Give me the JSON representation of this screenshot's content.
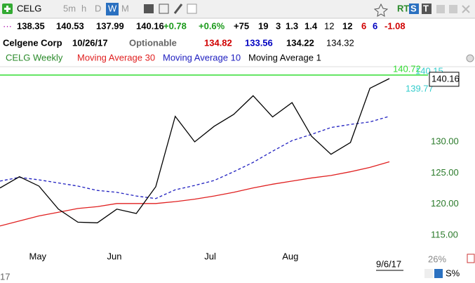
{
  "toolbar": {
    "symbol": "CELG",
    "timeframes": [
      "5m",
      "h",
      "D",
      "W",
      "M"
    ],
    "active": "W",
    "right_tags": [
      "RT",
      "S",
      "T"
    ]
  },
  "quote": {
    "row1": [
      {
        "text": "138.35",
        "color": "#000"
      },
      {
        "text": "140.53",
        "color": "#000"
      },
      {
        "text": "137.99",
        "color": "#000"
      },
      {
        "text": "140.16",
        "color": "#000"
      },
      {
        "text": "+0.78",
        "color": "#1a9a1a"
      },
      {
        "text": "+0.6%",
        "color": "#1a9a1a"
      },
      {
        "text": "+75",
        "color": "#000"
      },
      {
        "text": "19",
        "color": "#000"
      },
      {
        "text": "3",
        "color": "#000"
      },
      {
        "text": "1.3",
        "color": "#000"
      },
      {
        "text": "1.4",
        "color": "#000"
      },
      {
        "text": "12",
        "color": "#000"
      },
      {
        "text": "12",
        "color": "#000"
      },
      {
        "text": "6",
        "color": "#d00000"
      },
      {
        "text": "6",
        "color": "#0000c0"
      },
      {
        "text": "-1.08",
        "color": "#d00000"
      }
    ],
    "row2": [
      {
        "text": "Celgene Corp",
        "color": "#000"
      },
      {
        "text": "10/26/17",
        "color": "#000"
      },
      {
        "text": "Optionable",
        "color": "#666"
      },
      {
        "text": "134.82",
        "color": "#d00000"
      },
      {
        "text": "133.56",
        "color": "#0000c0"
      },
      {
        "text": "134.22",
        "color": "#000"
      },
      {
        "text": "134.32",
        "color": "#000"
      }
    ]
  },
  "chart_data": {
    "type": "line",
    "categories": [
      null,
      null,
      "May",
      null,
      null,
      null,
      "Jun",
      null,
      null,
      null,
      null,
      "Jul",
      null,
      null,
      null,
      "Aug",
      null,
      null,
      null,
      null,
      null
    ],
    "series": [
      {
        "name": "CELG Weekly",
        "color": "#000000",
        "dashed": false,
        "values": [
          122.6,
          124.4,
          122.9,
          119.2,
          117.1,
          117.0,
          119.2,
          118.5,
          122.8,
          134.1,
          130.0,
          132.5,
          134.4,
          137.4,
          134.0,
          136.3,
          130.9,
          128.0,
          129.9,
          138.6,
          140.16
        ]
      },
      {
        "name": "Moving Average 30",
        "color": "#e02020",
        "dashed": false,
        "values": [
          116.5,
          117.3,
          118.1,
          118.7,
          119.3,
          119.6,
          120.1,
          120.1,
          120.1,
          120.4,
          120.8,
          121.3,
          121.9,
          122.6,
          123.2,
          123.7,
          124.2,
          124.6,
          125.2,
          125.9,
          126.8
        ]
      },
      {
        "name": "Moving Average 10",
        "color": "#2020c0",
        "dashed": true,
        "values": [
          123.7,
          124.3,
          123.9,
          123.4,
          122.9,
          122.2,
          121.9,
          121.3,
          120.9,
          122.3,
          123.0,
          123.8,
          125.2,
          126.7,
          128.5,
          130.2,
          131.2,
          132.3,
          132.8,
          133.2,
          134.1
        ]
      }
    ],
    "legend_extra": "Moving Average 1",
    "ylim": [
      112.75,
      141.5
    ],
    "yticks": [
      {
        "value": 115,
        "label": "115.00"
      },
      {
        "value": 120,
        "label": "120.00"
      },
      {
        "value": 125,
        "label": "125.00"
      },
      {
        "value": 130,
        "label": "130.00"
      }
    ],
    "reference_line": {
      "value": 140.72,
      "color": "#33dd33"
    },
    "annotations": [
      "140.15",
      "139.77"
    ],
    "end_date": "9/6/17",
    "footer": [
      "26%",
      "S%",
      "17"
    ]
  }
}
